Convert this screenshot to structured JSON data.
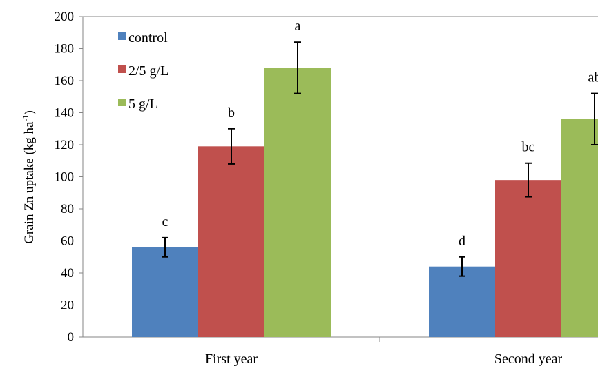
{
  "chart_data": {
    "type": "bar",
    "categories": [
      "First year",
      "Second year"
    ],
    "series": [
      {
        "name": "control",
        "color": "#4F81BD",
        "values": [
          56,
          44
        ],
        "errors": [
          6,
          6
        ],
        "letters": [
          "c",
          "d"
        ]
      },
      {
        "name": "2/5 g/L",
        "color": "#C0504D",
        "values": [
          119,
          98
        ],
        "errors": [
          11,
          10.5
        ],
        "letters": [
          "b",
          "bc"
        ]
      },
      {
        "name": "5 g/L",
        "color": "#9BBB59",
        "values": [
          168,
          136
        ],
        "errors": [
          16,
          16
        ],
        "letters": [
          "a",
          "ab"
        ]
      }
    ],
    "ylabel": "Grain Zn uptake (kg ha",
    "ylabel_sup": "-1",
    "ylabel_suffix": ")",
    "ylim": [
      0,
      200
    ],
    "yticks": [
      0,
      20,
      40,
      60,
      80,
      100,
      120,
      140,
      160,
      180,
      200
    ],
    "grid": false,
    "legend_position": "top-left"
  }
}
